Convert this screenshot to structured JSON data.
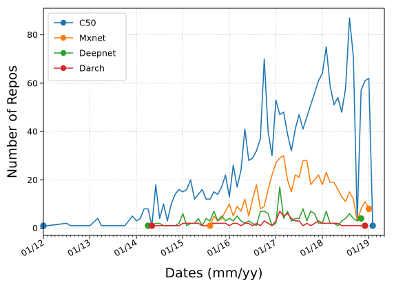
{
  "chart_data": {
    "type": "line",
    "xlabel": "Dates (mm/yy)",
    "ylabel": "Number of Repos",
    "xlim": [
      0,
      88
    ],
    "ylim": [
      -3,
      91
    ],
    "x_ticks": [
      {
        "value": 0,
        "label": "01/12"
      },
      {
        "value": 12,
        "label": "01/13"
      },
      {
        "value": 24,
        "label": "01/14"
      },
      {
        "value": 36,
        "label": "01/15"
      },
      {
        "value": 48,
        "label": "01/16"
      },
      {
        "value": 60,
        "label": "01/17"
      },
      {
        "value": 72,
        "label": "01/18"
      },
      {
        "value": 84,
        "label": "01/19"
      }
    ],
    "y_ticks": [
      0,
      20,
      40,
      60,
      80
    ],
    "grid": true,
    "legend_position": "top-left",
    "series": [
      {
        "name": "C50",
        "color": "#1f77b4",
        "points": [
          [
            0,
            1
          ],
          [
            1,
            1
          ],
          [
            6,
            2
          ],
          [
            7,
            1
          ],
          [
            8,
            1
          ],
          [
            12,
            1
          ],
          [
            14,
            4
          ],
          [
            15,
            1
          ],
          [
            16,
            1
          ],
          [
            21,
            1
          ],
          [
            22,
            3
          ],
          [
            23,
            5
          ],
          [
            24,
            3
          ],
          [
            25,
            4
          ],
          [
            26,
            8
          ],
          [
            27,
            8
          ],
          [
            28,
            1
          ],
          [
            29,
            18
          ],
          [
            30,
            4
          ],
          [
            31,
            10
          ],
          [
            32,
            3
          ],
          [
            33,
            10
          ],
          [
            34,
            14
          ],
          [
            35,
            16
          ],
          [
            36,
            15
          ],
          [
            37,
            16
          ],
          [
            38,
            20
          ],
          [
            39,
            12
          ],
          [
            40,
            14
          ],
          [
            41,
            16
          ],
          [
            42,
            12
          ],
          [
            43,
            12
          ],
          [
            44,
            15
          ],
          [
            45,
            14
          ],
          [
            46,
            17
          ],
          [
            47,
            22
          ],
          [
            48,
            13
          ],
          [
            49,
            26
          ],
          [
            50,
            17
          ],
          [
            51,
            24
          ],
          [
            52,
            41
          ],
          [
            53,
            28
          ],
          [
            54,
            29
          ],
          [
            55,
            32
          ],
          [
            56,
            37
          ],
          [
            57,
            70
          ],
          [
            58,
            40
          ],
          [
            59,
            30
          ],
          [
            60,
            53
          ],
          [
            61,
            47
          ],
          [
            62,
            48
          ],
          [
            63,
            39
          ],
          [
            64,
            32
          ],
          [
            65,
            41
          ],
          [
            66,
            47
          ],
          [
            67,
            41
          ],
          [
            68,
            46
          ],
          [
            69,
            51
          ],
          [
            70,
            56
          ],
          [
            71,
            61
          ],
          [
            72,
            64
          ],
          [
            73,
            75
          ],
          [
            74,
            59
          ],
          [
            75,
            51
          ],
          [
            76,
            54
          ],
          [
            77,
            48
          ],
          [
            78,
            58
          ],
          [
            79,
            87
          ],
          [
            80,
            71
          ],
          [
            81,
            3
          ],
          [
            82,
            57
          ],
          [
            83,
            61
          ],
          [
            84,
            62
          ],
          [
            85,
            1
          ]
        ]
      },
      {
        "name": "Mxnet",
        "color": "#ff7f0e",
        "points": [
          [
            43,
            1
          ],
          [
            44,
            5
          ],
          [
            45,
            3
          ],
          [
            46,
            4
          ],
          [
            47,
            7
          ],
          [
            48,
            10
          ],
          [
            49,
            5
          ],
          [
            50,
            9
          ],
          [
            51,
            7
          ],
          [
            52,
            12
          ],
          [
            53,
            5
          ],
          [
            54,
            12
          ],
          [
            55,
            18
          ],
          [
            56,
            8
          ],
          [
            57,
            9
          ],
          [
            58,
            16
          ],
          [
            59,
            22
          ],
          [
            60,
            27
          ],
          [
            61,
            29
          ],
          [
            62,
            30
          ],
          [
            63,
            20
          ],
          [
            64,
            15
          ],
          [
            65,
            22
          ],
          [
            66,
            21
          ],
          [
            67,
            28
          ],
          [
            68,
            28
          ],
          [
            69,
            18
          ],
          [
            70,
            20
          ],
          [
            71,
            22
          ],
          [
            72,
            18
          ],
          [
            73,
            23
          ],
          [
            74,
            19
          ],
          [
            75,
            19
          ],
          [
            76,
            16
          ],
          [
            77,
            13
          ],
          [
            78,
            11
          ],
          [
            79,
            15
          ],
          [
            80,
            12
          ],
          [
            81,
            3
          ],
          [
            82,
            8
          ],
          [
            83,
            11
          ],
          [
            84,
            8
          ]
        ]
      },
      {
        "name": "Deepnet",
        "color": "#2ca02c",
        "points": [
          [
            27,
            1
          ],
          [
            28,
            1
          ],
          [
            29,
            2
          ],
          [
            30,
            2
          ],
          [
            31,
            1
          ],
          [
            32,
            1
          ],
          [
            33,
            1
          ],
          [
            34,
            1
          ],
          [
            35,
            2
          ],
          [
            36,
            6
          ],
          [
            37,
            1
          ],
          [
            38,
            2
          ],
          [
            39,
            2
          ],
          [
            40,
            4
          ],
          [
            41,
            1
          ],
          [
            42,
            4
          ],
          [
            43,
            3
          ],
          [
            44,
            7
          ],
          [
            45,
            3
          ],
          [
            46,
            5
          ],
          [
            47,
            3
          ],
          [
            48,
            4
          ],
          [
            49,
            3
          ],
          [
            50,
            5
          ],
          [
            51,
            3
          ],
          [
            52,
            2
          ],
          [
            53,
            3
          ],
          [
            54,
            2
          ],
          [
            55,
            1
          ],
          [
            56,
            7
          ],
          [
            57,
            7
          ],
          [
            58,
            6
          ],
          [
            59,
            1
          ],
          [
            60,
            2
          ],
          [
            61,
            17
          ],
          [
            62,
            4
          ],
          [
            63,
            7
          ],
          [
            64,
            3
          ],
          [
            65,
            4
          ],
          [
            66,
            4
          ],
          [
            67,
            8
          ],
          [
            68,
            3
          ],
          [
            69,
            7
          ],
          [
            70,
            6
          ],
          [
            71,
            2
          ],
          [
            72,
            2
          ],
          [
            73,
            7
          ],
          [
            74,
            2
          ],
          [
            75,
            2
          ],
          [
            76,
            1
          ],
          [
            77,
            3
          ],
          [
            78,
            4
          ],
          [
            79,
            6
          ],
          [
            80,
            4
          ],
          [
            81,
            3
          ],
          [
            82,
            4
          ]
        ]
      },
      {
        "name": "Darch",
        "color": "#d62728",
        "points": [
          [
            28,
            1
          ],
          [
            29,
            1
          ],
          [
            34,
            1
          ],
          [
            35,
            1
          ],
          [
            36,
            2
          ],
          [
            40,
            2
          ],
          [
            41,
            1
          ],
          [
            42,
            1
          ],
          [
            43,
            2
          ],
          [
            44,
            2
          ],
          [
            45,
            2
          ],
          [
            46,
            2
          ],
          [
            47,
            2
          ],
          [
            48,
            1
          ],
          [
            49,
            2
          ],
          [
            50,
            2
          ],
          [
            51,
            1
          ],
          [
            52,
            2
          ],
          [
            53,
            2
          ],
          [
            54,
            1
          ],
          [
            55,
            2
          ],
          [
            56,
            1
          ],
          [
            57,
            3
          ],
          [
            58,
            2
          ],
          [
            59,
            1
          ],
          [
            60,
            3
          ],
          [
            61,
            7
          ],
          [
            62,
            5
          ],
          [
            63,
            6
          ],
          [
            64,
            4
          ],
          [
            65,
            3
          ],
          [
            66,
            3
          ],
          [
            67,
            1
          ],
          [
            68,
            2
          ],
          [
            69,
            1
          ],
          [
            70,
            2
          ],
          [
            71,
            3
          ],
          [
            72,
            2
          ],
          [
            73,
            2
          ],
          [
            74,
            2
          ],
          [
            75,
            2
          ],
          [
            76,
            2
          ],
          [
            77,
            1
          ],
          [
            78,
            1
          ],
          [
            79,
            1
          ],
          [
            80,
            1
          ],
          [
            81,
            1
          ],
          [
            82,
            1
          ],
          [
            83,
            1
          ]
        ]
      }
    ]
  }
}
